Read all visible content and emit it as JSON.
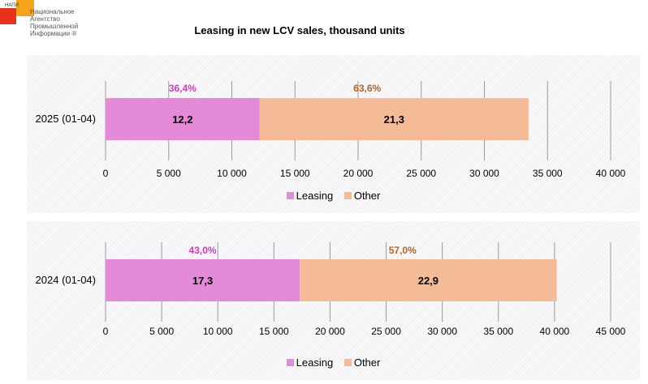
{
  "logo": {
    "abbr": "НАПИ",
    "lines": [
      "Национальное",
      "Агентство",
      "Промышленной",
      "Информации ®"
    ]
  },
  "chart_title": "Leasing in new LCV sales, thousand units",
  "colors": {
    "leasing": "#e58ad9",
    "other": "#f5bb96",
    "leasing_text": "#cc3fba",
    "other_text": "#b5642a"
  },
  "chart_data": [
    {
      "type": "bar",
      "orientation": "horizontal",
      "stacked": true,
      "categories": [
        "2025 (01-04)"
      ],
      "series": [
        {
          "name": "Leasing",
          "values": [
            12200
          ],
          "label": "12,2",
          "share": "36,4%"
        },
        {
          "name": "Other",
          "values": [
            21300
          ],
          "label": "21,3",
          "share": "63,6%"
        }
      ],
      "xlim": [
        0,
        40000
      ],
      "ticks": [
        "0",
        "5 000",
        "10 000",
        "15 000",
        "20 000",
        "25 000",
        "30 000",
        "35 000",
        "40 000"
      ],
      "grid": true,
      "legend": "bottom"
    },
    {
      "type": "bar",
      "orientation": "horizontal",
      "stacked": true,
      "categories": [
        "2024 (01-04)"
      ],
      "series": [
        {
          "name": "Leasing",
          "values": [
            17300
          ],
          "label": "17,3",
          "share": "43,0%"
        },
        {
          "name": "Other",
          "values": [
            22900
          ],
          "label": "22,9",
          "share": "57,0%"
        }
      ],
      "xlim": [
        0,
        45000
      ],
      "ticks": [
        "0",
        "5 000",
        "10 000",
        "15 000",
        "20 000",
        "25 000",
        "30 000",
        "35 000",
        "40 000",
        "45 000"
      ],
      "grid": true,
      "legend": "bottom"
    }
  ]
}
